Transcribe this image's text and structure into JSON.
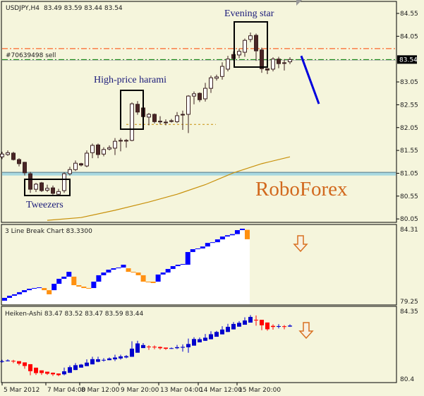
{
  "main": {
    "title": "USDJPY,H4",
    "ohlc_readout": "83.49 83.59 83.44 83.54",
    "order_label": "#70639498 sell",
    "current_price": "83.54",
    "price_ticks": [
      "84.55",
      "84.05",
      "83.05",
      "82.55",
      "82.05",
      "81.55",
      "81.05",
      "80.55",
      "80.05"
    ],
    "annotations": {
      "tweezers": "Tweezers",
      "harami": "High-price harami",
      "evening_star": "Evening star"
    },
    "watermark": "RoboForex",
    "colors": {
      "bull_fill": "#ffffff",
      "bear_fill": "#4a2626",
      "candle_outline": "#3a1f1f",
      "ma": "#c8900a",
      "order_line": "#008000",
      "sl_line": "#ff4500",
      "support": "#a8d8e0",
      "trend_arrow": "#0000dd",
      "watermark": "#d2691e"
    }
  },
  "chart_data": [
    {
      "type": "candlestick",
      "title": "USDJPY,H4",
      "ylim": [
        80.0,
        84.6
      ],
      "lines": {
        "order_sell": 83.54,
        "dash_dot_orange": 83.78,
        "support_top": 81.07,
        "support_bottom": 81.0,
        "harami_level": 82.12
      },
      "forecast_line": [
        83.62,
        82.57
      ],
      "ohlc": [
        [
          81.41,
          81.52,
          81.36,
          81.47
        ],
        [
          81.46,
          81.55,
          81.43,
          81.5
        ],
        [
          81.49,
          81.52,
          81.33,
          81.35
        ],
        [
          81.35,
          81.38,
          81.2,
          81.26
        ],
        [
          81.29,
          81.3,
          81.0,
          81.06
        ],
        [
          81.04,
          81.08,
          80.62,
          80.7
        ],
        [
          80.7,
          80.84,
          80.64,
          80.81
        ],
        [
          80.84,
          80.86,
          80.64,
          80.67
        ],
        [
          80.68,
          80.8,
          80.64,
          80.72
        ],
        [
          80.73,
          80.78,
          80.58,
          80.61
        ],
        [
          80.59,
          80.71,
          80.57,
          80.65
        ],
        [
          80.67,
          81.07,
          80.62,
          81.04
        ],
        [
          81.04,
          81.19,
          81.0,
          81.13
        ],
        [
          81.13,
          81.33,
          81.1,
          81.27
        ],
        [
          81.26,
          81.28,
          81.2,
          81.23
        ],
        [
          81.21,
          81.55,
          81.18,
          81.49
        ],
        [
          81.5,
          81.7,
          81.38,
          81.66
        ],
        [
          81.67,
          81.7,
          81.38,
          81.46
        ],
        [
          81.47,
          81.62,
          81.42,
          81.57
        ],
        [
          81.58,
          81.66,
          81.55,
          81.61
        ],
        [
          81.6,
          81.82,
          81.45,
          81.75
        ],
        [
          81.77,
          81.82,
          81.53,
          81.76
        ],
        [
          81.77,
          81.8,
          81.61,
          81.76
        ],
        [
          81.77,
          82.6,
          81.75,
          82.57
        ],
        [
          82.56,
          82.63,
          82.33,
          82.39
        ],
        [
          82.48,
          82.5,
          82.26,
          82.29
        ],
        [
          82.28,
          82.37,
          82.1,
          82.34
        ],
        [
          82.34,
          82.36,
          82.14,
          82.18
        ],
        [
          82.19,
          82.3,
          82.12,
          82.18
        ],
        [
          82.17,
          82.23,
          82.1,
          82.16
        ],
        [
          82.2,
          82.24,
          82.16,
          82.2
        ],
        [
          82.18,
          82.39,
          82.15,
          82.31
        ],
        [
          82.34,
          82.42,
          82.0,
          82.34
        ],
        [
          82.34,
          82.76,
          81.93,
          82.74
        ],
        [
          82.74,
          82.84,
          82.56,
          82.79
        ],
        [
          82.8,
          82.82,
          82.61,
          82.66
        ],
        [
          82.68,
          83.03,
          82.62,
          82.91
        ],
        [
          82.91,
          83.19,
          82.81,
          83.14
        ],
        [
          83.13,
          83.21,
          83.08,
          83.16
        ],
        [
          83.17,
          83.48,
          83.1,
          83.39
        ],
        [
          83.33,
          83.62,
          83.28,
          83.55
        ],
        [
          83.65,
          83.72,
          83.52,
          83.56
        ],
        [
          83.64,
          83.78,
          83.57,
          83.72
        ],
        [
          83.7,
          84.0,
          83.6,
          83.96
        ],
        [
          83.98,
          84.13,
          83.92,
          84.06
        ],
        [
          84.07,
          84.11,
          83.51,
          83.73
        ],
        [
          83.75,
          83.8,
          83.25,
          83.34
        ],
        [
          83.34,
          83.34,
          83.22,
          83.31
        ],
        [
          83.33,
          83.59,
          83.28,
          83.55
        ],
        [
          83.55,
          83.6,
          83.35,
          83.45
        ],
        [
          83.47,
          83.55,
          83.3,
          83.46
        ],
        [
          83.49,
          83.59,
          83.44,
          83.54
        ]
      ],
      "moving_average": [
        [
          8,
          80.02
        ],
        [
          14,
          80.08
        ],
        [
          20,
          80.24
        ],
        [
          26,
          80.42
        ],
        [
          31,
          80.59
        ],
        [
          36,
          80.8
        ],
        [
          41,
          81.06
        ],
        [
          46,
          81.26
        ],
        [
          51,
          81.41
        ]
      ],
      "x_ticks": [
        "5 Mar 2012",
        "7 Mar 04:00",
        "8 Mar 12:00",
        "9 Mar 20:00",
        "13 Mar 04:00",
        "14 Mar 12:00",
        "15 Mar 20:00"
      ]
    },
    {
      "type": "line_break",
      "title": "3 Line Break Chart 83.3300",
      "ylim": [
        79.25,
        84.31
      ],
      "colors": {
        "up": "#0000ff",
        "down": "#ff9010"
      },
      "blocks": [
        [
          "u",
          79.3,
          79.5
        ],
        [
          "u",
          79.5,
          79.65
        ],
        [
          "u",
          79.65,
          79.75
        ],
        [
          "u",
          79.75,
          79.9
        ],
        [
          "u",
          79.9,
          80.04
        ],
        [
          "u",
          80.04,
          80.14
        ],
        [
          "u",
          80.14,
          80.19
        ],
        [
          "u",
          80.19,
          80.24
        ],
        [
          "d",
          80.04,
          80.19
        ],
        [
          "d",
          79.75,
          80.04
        ],
        [
          "u",
          80.04,
          80.49
        ],
        [
          "u",
          80.49,
          80.84
        ],
        [
          "u",
          80.84,
          80.99
        ],
        [
          "u",
          80.99,
          81.33
        ],
        [
          "d",
          80.39,
          80.99
        ],
        [
          "d",
          80.29,
          80.39
        ],
        [
          "d",
          80.19,
          80.29
        ],
        [
          "d",
          80.14,
          80.19
        ],
        [
          "u",
          80.19,
          80.64
        ],
        [
          "u",
          80.64,
          81.09
        ],
        [
          "u",
          81.09,
          81.28
        ],
        [
          "u",
          81.28,
          81.48
        ],
        [
          "u",
          81.48,
          81.58
        ],
        [
          "u",
          81.58,
          81.63
        ],
        [
          "u",
          81.63,
          81.83
        ],
        [
          "d",
          81.33,
          81.58
        ],
        [
          "d",
          81.28,
          81.33
        ],
        [
          "d",
          81.09,
          81.28
        ],
        [
          "d",
          80.64,
          81.09
        ],
        [
          "d",
          80.59,
          80.64
        ],
        [
          "d",
          80.54,
          80.64
        ],
        [
          "u",
          80.64,
          81.14
        ],
        [
          "u",
          81.14,
          81.28
        ],
        [
          "u",
          81.28,
          81.53
        ],
        [
          "u",
          81.53,
          81.73
        ],
        [
          "u",
          81.73,
          81.83
        ],
        [
          "u",
          81.83,
          81.88
        ],
        [
          "u",
          81.83,
          82.72
        ],
        [
          "u",
          82.72,
          82.92
        ],
        [
          "u",
          82.92,
          82.97
        ],
        [
          "u",
          82.97,
          83.11
        ],
        [
          "u",
          83.11,
          83.36
        ],
        [
          "u",
          83.36,
          83.41
        ],
        [
          "u",
          83.41,
          83.61
        ],
        [
          "u",
          83.61,
          83.81
        ],
        [
          "u",
          83.81,
          83.9
        ],
        [
          "u",
          83.9,
          83.98
        ],
        [
          "u",
          83.98,
          84.26
        ],
        [
          "u",
          84.26,
          84.36
        ],
        [
          "d",
          83.62,
          84.28
        ]
      ],
      "signal": "arrow-down"
    },
    {
      "type": "heiken_ashi",
      "title": "Heiken-Ashi 83.47 83.52 83.47 83.59 83.44",
      "ylim": [
        80.4,
        84.35
      ],
      "colors": {
        "up": "#0000cc",
        "down": "#ff0000"
      },
      "signal": "arrow-down"
    }
  ],
  "panes": {
    "line_break": {
      "label": "3 Line Break Chart 83.3300",
      "ticks": [
        "84.31",
        "79.25"
      ]
    },
    "heiken": {
      "label": "Heiken-Ashi 83.47 83.52 83.47 83.59 83.44",
      "ticks": [
        "84.35",
        "80.4"
      ]
    }
  }
}
